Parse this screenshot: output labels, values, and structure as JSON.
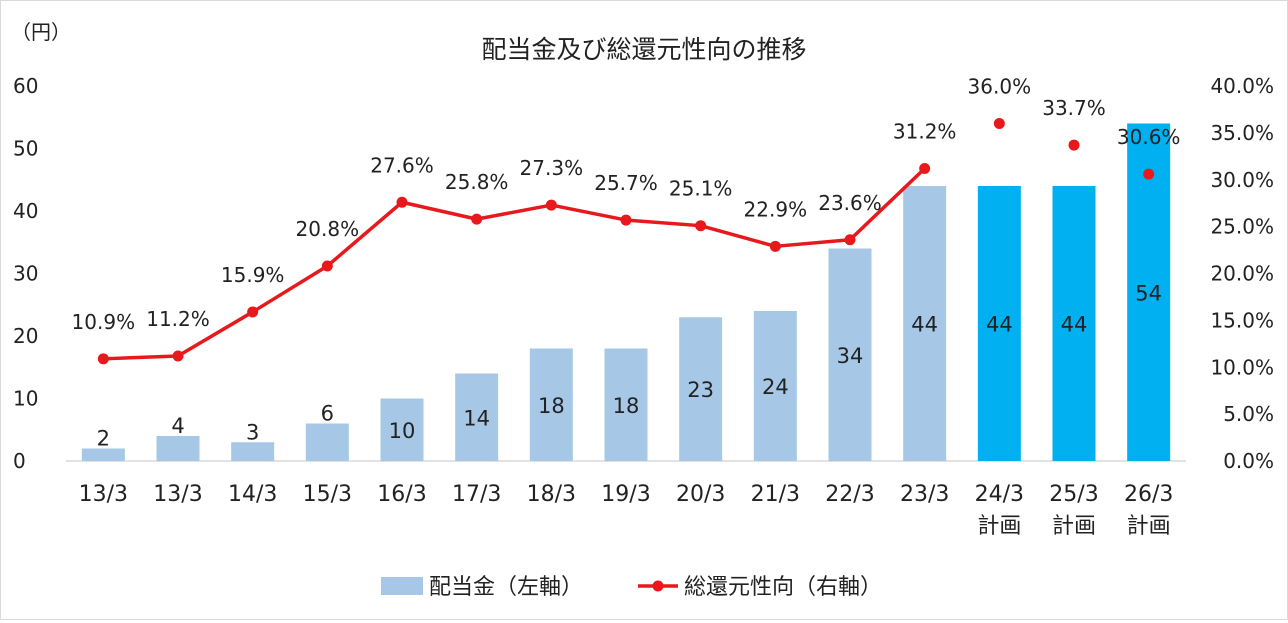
{
  "chart_data": {
    "type": "bar",
    "title": "配当金及び総還元性向の推移",
    "left_unit": "（円）",
    "categories": [
      [
        "13/3"
      ],
      [
        "13/3"
      ],
      [
        "14/3"
      ],
      [
        "15/3"
      ],
      [
        "16/3"
      ],
      [
        "17/3"
      ],
      [
        "18/3"
      ],
      [
        "19/3"
      ],
      [
        "20/3"
      ],
      [
        "21/3"
      ],
      [
        "22/3"
      ],
      [
        "23/3"
      ],
      [
        "24/3",
        "計画"
      ],
      [
        "25/3",
        "計画"
      ],
      [
        "26/3",
        "計画"
      ]
    ],
    "series": [
      {
        "name": "配当金（左軸）",
        "axis": "left",
        "values": [
          2,
          4,
          3,
          6,
          10,
          14,
          18,
          18,
          23,
          24,
          34,
          44,
          44,
          44,
          54
        ],
        "labels": [
          "2",
          "4",
          "3",
          "6",
          "10",
          "14",
          "18",
          "18",
          "23",
          "24",
          "34",
          "44",
          "44",
          "44",
          "54"
        ]
      },
      {
        "name": "総還元性向（右軸）",
        "axis": "right",
        "type": "line",
        "values": [
          10.9,
          11.2,
          15.9,
          20.8,
          27.6,
          25.8,
          27.3,
          25.7,
          25.1,
          22.9,
          23.6,
          31.2,
          36.0,
          33.7,
          30.6
        ],
        "labels": [
          "10.9%",
          "11.2%",
          "15.9%",
          "20.8%",
          "27.6%",
          "25.8%",
          "27.3%",
          "25.7%",
          "25.1%",
          "22.9%",
          "23.6%",
          "31.2%",
          "36.0%",
          "33.7%",
          "30.6%"
        ],
        "connected_count": 12
      }
    ],
    "y_left": {
      "range": [
        0,
        60
      ],
      "ticks": [
        "0",
        "10",
        "20",
        "30",
        "40",
        "50",
        "60"
      ]
    },
    "y_right": {
      "range": [
        0,
        40
      ],
      "ticks": [
        "0.0%",
        "5.0%",
        "10.0%",
        "15.0%",
        "20.0%",
        "25.0%",
        "30.0%",
        "35.0%",
        "40.0%"
      ]
    },
    "grid": false,
    "legend_position": "bottom",
    "colors": {
      "bar_actual": "#a6c8e6",
      "bar_plan": "#00b0f0",
      "line": "#e8191d",
      "axis": "#d9d9d9"
    },
    "plan_from_index": 12
  }
}
